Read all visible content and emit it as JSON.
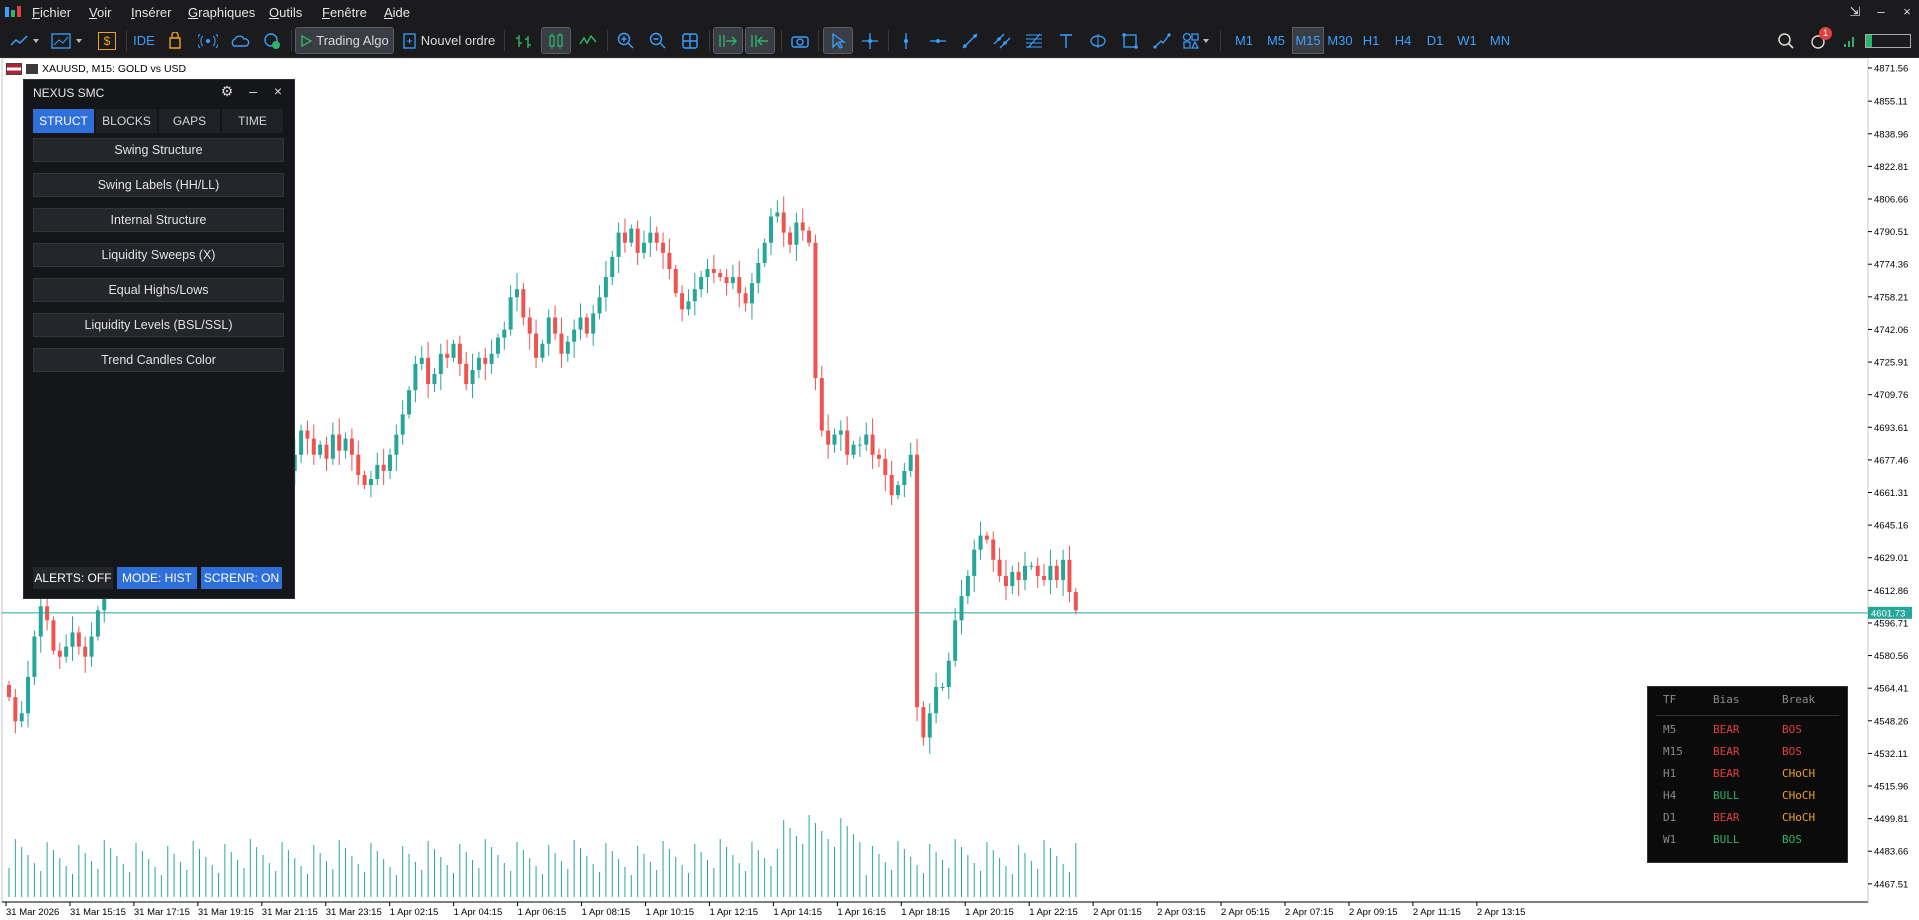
{
  "menubar": {
    "items": [
      "Fichier",
      "Voir",
      "Insérer",
      "Graphiques",
      "Outils",
      "Fenêtre",
      "Aide"
    ]
  },
  "toolbar": {
    "ide_label": "IDE",
    "algo_label": "Trading Algo",
    "order_label": "Nouvel ordre",
    "timeframes": [
      "M1",
      "M5",
      "M15",
      "M30",
      "H1",
      "H4",
      "D1",
      "W1",
      "MN"
    ],
    "active_timeframe": "M15",
    "notification_count": "1"
  },
  "symbol": {
    "label": "XAUUSD, M15:  GOLD vs USD"
  },
  "panel": {
    "title": "NEXUS SMC",
    "tabs": [
      "STRUCT",
      "BLOCKS",
      "GAPS",
      "TIME"
    ],
    "active_tab": "STRUCT",
    "features": [
      "Swing Structure",
      "Swing Labels (HH/LL)",
      "Internal Structure",
      "Liquidity Sweeps (X)",
      "Equal Highs/Lows",
      "Liquidity Levels (BSL/SSL)",
      "Trend Candles Color"
    ],
    "alerts_label": "ALERTS: OFF",
    "mode_label": "MODE: HIST",
    "screener_label": "SCRENR: ON",
    "accent": "#2f6fd9"
  },
  "tf_table": {
    "headers": [
      "TF",
      "Bias",
      "Break"
    ],
    "rows": [
      {
        "tf": "M5",
        "bias": "BEAR",
        "brk": "BOS"
      },
      {
        "tf": "M15",
        "bias": "BEAR",
        "brk": "BOS"
      },
      {
        "tf": "H1",
        "bias": "BEAR",
        "brk": "CHoCH"
      },
      {
        "tf": "H4",
        "bias": "BULL",
        "brk": "CHoCH"
      },
      {
        "tf": "D1",
        "bias": "BEAR",
        "brk": "CHoCH"
      },
      {
        "tf": "W1",
        "bias": "BULL",
        "brk": "BOS"
      }
    ],
    "colors": {
      "bear": "#e0413f",
      "bull": "#2fb26a",
      "choch": "#f0a21a"
    }
  },
  "chart_data": {
    "type": "candlestick",
    "symbol": "XAUUSD",
    "timeframe": "M15",
    "y_ticks": [
      "4871.56",
      "4855.11",
      "4838.96",
      "4822.81",
      "4806.66",
      "4790.51",
      "4774.36",
      "4758.21",
      "4742.06",
      "4725.91",
      "4709.76",
      "4693.61",
      "4677.46",
      "4661.31",
      "4645.16",
      "4629.01",
      "4612.86",
      "4596.71",
      "4580.56",
      "4564.41",
      "4548.26",
      "4532.11",
      "4515.96",
      "4499.81",
      "4483.66",
      "4467.51"
    ],
    "ylim": [
      4461,
      4875
    ],
    "current_price": "4601.73",
    "x_ticks": [
      "31 Mar 2026",
      "31 Mar 15:15",
      "31 Mar 17:15",
      "31 Mar 19:15",
      "31 Mar 21:15",
      "31 Mar 23:15",
      "1 Apr 02:15",
      "1 Apr 04:15",
      "1 Apr 06:15",
      "1 Apr 08:15",
      "1 Apr 10:15",
      "1 Apr 12:15",
      "1 Apr 14:15",
      "1 Apr 16:15",
      "1 Apr 18:15",
      "1 Apr 20:15",
      "1 Apr 22:15",
      "2 Apr 01:15",
      "2 Apr 03:15",
      "2 Apr 05:15",
      "2 Apr 07:15",
      "2 Apr 09:15",
      "2 Apr 11:15",
      "2 Apr 13:15"
    ],
    "close": [
      4560,
      4548,
      4552,
      4570,
      4590,
      4605,
      4598,
      4583,
      4580,
      4585,
      4592,
      4585,
      4580,
      4590,
      4603,
      4620,
      4640,
      4650,
      4628,
      4620,
      4630,
      4645,
      4658,
      4665,
      4678,
      4690,
      4680,
      4662,
      4668,
      4660,
      4672,
      4680,
      4690,
      4698,
      4695,
      4710,
      4722,
      4705,
      4688,
      4692,
      4690,
      4675,
      4680,
      4668,
      4672,
      4680,
      4692,
      4688,
      4680,
      4685,
      4678,
      4690,
      4682,
      4688,
      4680,
      4670,
      4665,
      4668,
      4675,
      4672,
      4680,
      4690,
      4700,
      4712,
      4725,
      4728,
      4715,
      4720,
      4730,
      4728,
      4735,
      4725,
      4715,
      4722,
      4728,
      4725,
      4730,
      4738,
      4742,
      4758,
      4762,
      4748,
      4740,
      4728,
      4735,
      4748,
      4740,
      4730,
      4736,
      4742,
      4748,
      4740,
      4750,
      4758,
      4768,
      4778,
      4790,
      4785,
      4792,
      4780,
      4785,
      4790,
      4785,
      4780,
      4772,
      4760,
      4752,
      4756,
      4762,
      4768,
      4772,
      4770,
      4768,
      4765,
      4768,
      4760,
      4755,
      4765,
      4775,
      4785,
      4798,
      4800,
      4790,
      4784,
      4795,
      4791,
      4785,
      4718,
      4692,
      4685,
      4690,
      4692,
      4680,
      4685,
      4685,
      4690,
      4680,
      4678,
      4670,
      4660,
      4665,
      4672,
      4680,
      4555,
      4540,
      4552,
      4565,
      4565,
      4578,
      4598,
      4610,
      4620,
      4633,
      4640,
      4638,
      4628,
      4620,
      4615,
      4622,
      4618,
      4625,
      4625,
      4620,
      4618,
      4625,
      4618,
      4628,
      4612,
      4603
    ],
    "volume_ticks": [
      "4499.81",
      "4483.66",
      "4467.51"
    ]
  }
}
